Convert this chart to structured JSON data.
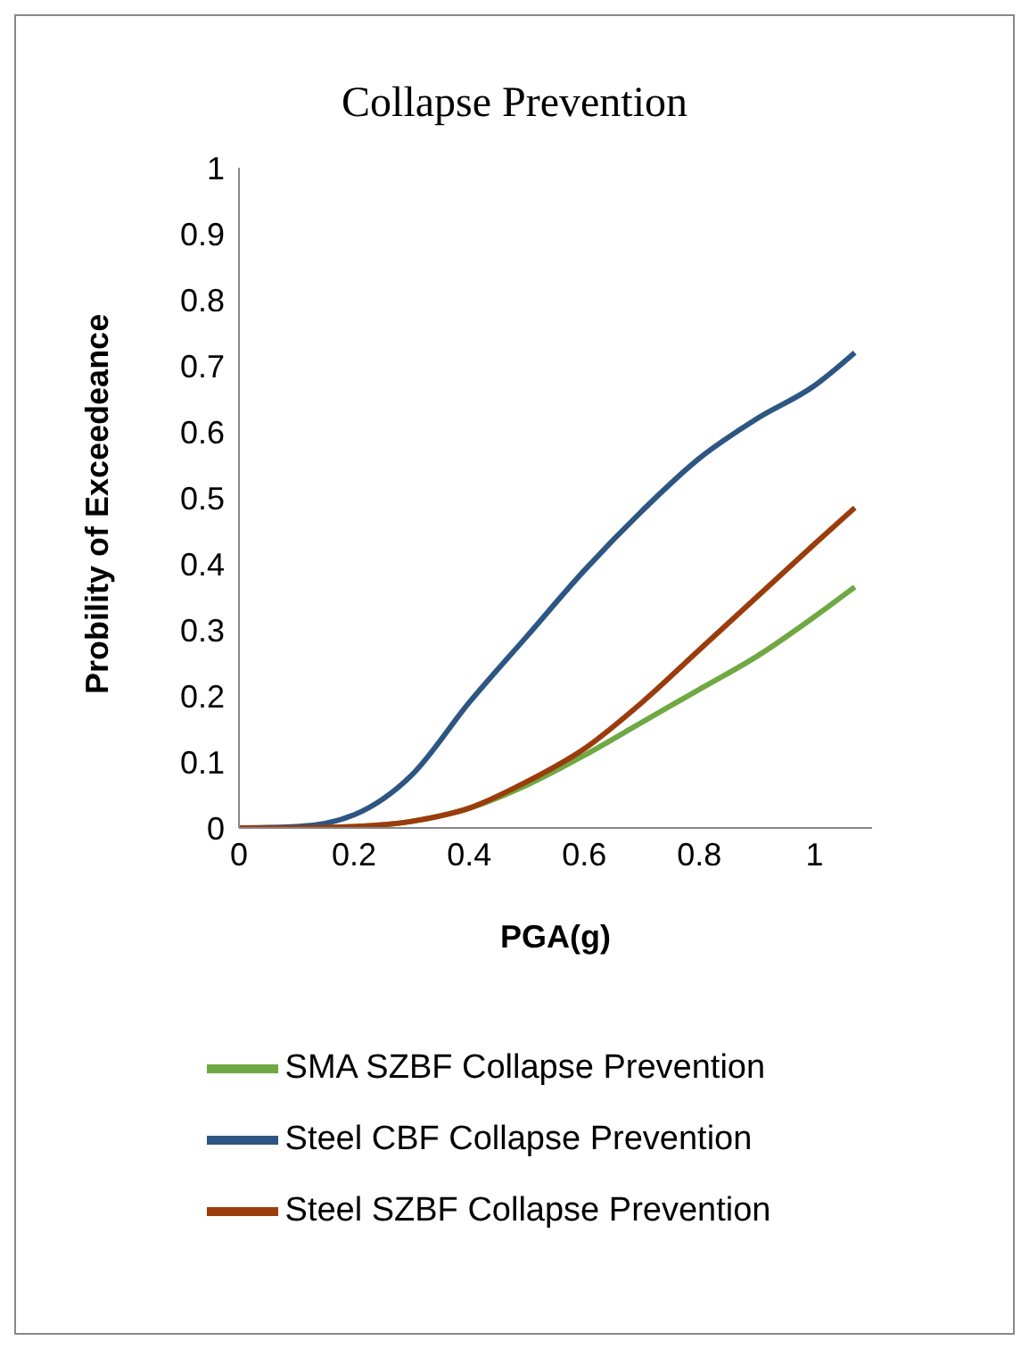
{
  "chart_data": {
    "type": "line",
    "title": "Collapse Prevention",
    "xlabel": "PGA(g)",
    "ylabel": "Probility of Exceedeance",
    "xlim": [
      0,
      1.1
    ],
    "xticks": [
      0,
      0.2,
      0.4,
      0.6,
      0.8,
      1
    ],
    "ylim": [
      0,
      1
    ],
    "yticks": [
      0,
      0.1,
      0.2,
      0.3,
      0.4,
      0.5,
      0.6,
      0.7,
      0.8,
      0.9,
      1
    ],
    "grid": false,
    "legend": "bottom",
    "marker": "none",
    "line_style": "solid",
    "series": [
      {
        "name": "SMA SZBF Collapse Prevention",
        "color": "#70a843",
        "x": [
          0,
          0.1,
          0.2,
          0.3,
          0.4,
          0.5,
          0.6,
          0.7,
          0.8,
          0.9,
          1,
          1.07
        ],
        "values": [
          0,
          0,
          0.002,
          0.01,
          0.03,
          0.065,
          0.11,
          0.16,
          0.21,
          0.26,
          0.32,
          0.365
        ]
      },
      {
        "name": "Steel CBF Collapse Prevention",
        "color": "#2d5683",
        "x": [
          0,
          0.1,
          0.2,
          0.3,
          0.4,
          0.5,
          0.6,
          0.7,
          0.8,
          0.9,
          1,
          1.07
        ],
        "values": [
          0,
          0.002,
          0.02,
          0.08,
          0.19,
          0.29,
          0.39,
          0.48,
          0.56,
          0.62,
          0.67,
          0.72
        ]
      },
      {
        "name": "Steel SZBF Collapse Prevention",
        "color": "#9b3c0c",
        "x": [
          0,
          0.1,
          0.2,
          0.3,
          0.4,
          0.5,
          0.6,
          0.7,
          0.8,
          0.9,
          1,
          1.07
        ],
        "values": [
          0,
          0,
          0.002,
          0.01,
          0.03,
          0.07,
          0.12,
          0.19,
          0.27,
          0.35,
          0.43,
          0.485
        ]
      }
    ]
  }
}
